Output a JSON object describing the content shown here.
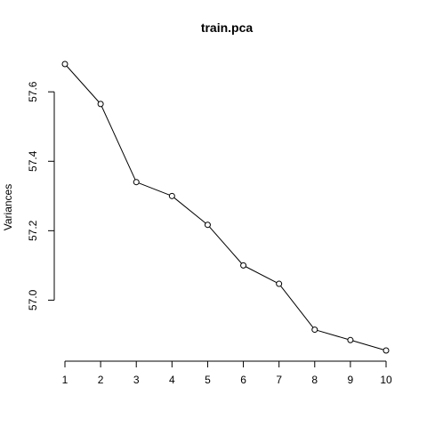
{
  "chart_data": {
    "type": "line",
    "title": "train.pca",
    "xlabel": "",
    "ylabel": "Variances",
    "x": [
      1,
      2,
      3,
      4,
      5,
      6,
      7,
      8,
      9,
      10
    ],
    "series": [
      {
        "values": [
          57.68,
          57.565,
          57.34,
          57.3,
          57.217,
          57.1,
          57.047,
          56.915,
          56.885,
          56.855
        ]
      }
    ],
    "xticks": [
      "1",
      "2",
      "3",
      "4",
      "5",
      "6",
      "7",
      "8",
      "9",
      "10"
    ],
    "yticks": [
      "57.0",
      "57.2",
      "57.4",
      "57.6"
    ],
    "xlim": [
      1,
      10
    ],
    "ylim": [
      56.855,
      57.68
    ],
    "grid": false,
    "marker": "open-circle",
    "colors": {
      "line": "#000000",
      "marker_fill": "#ffffff"
    }
  }
}
